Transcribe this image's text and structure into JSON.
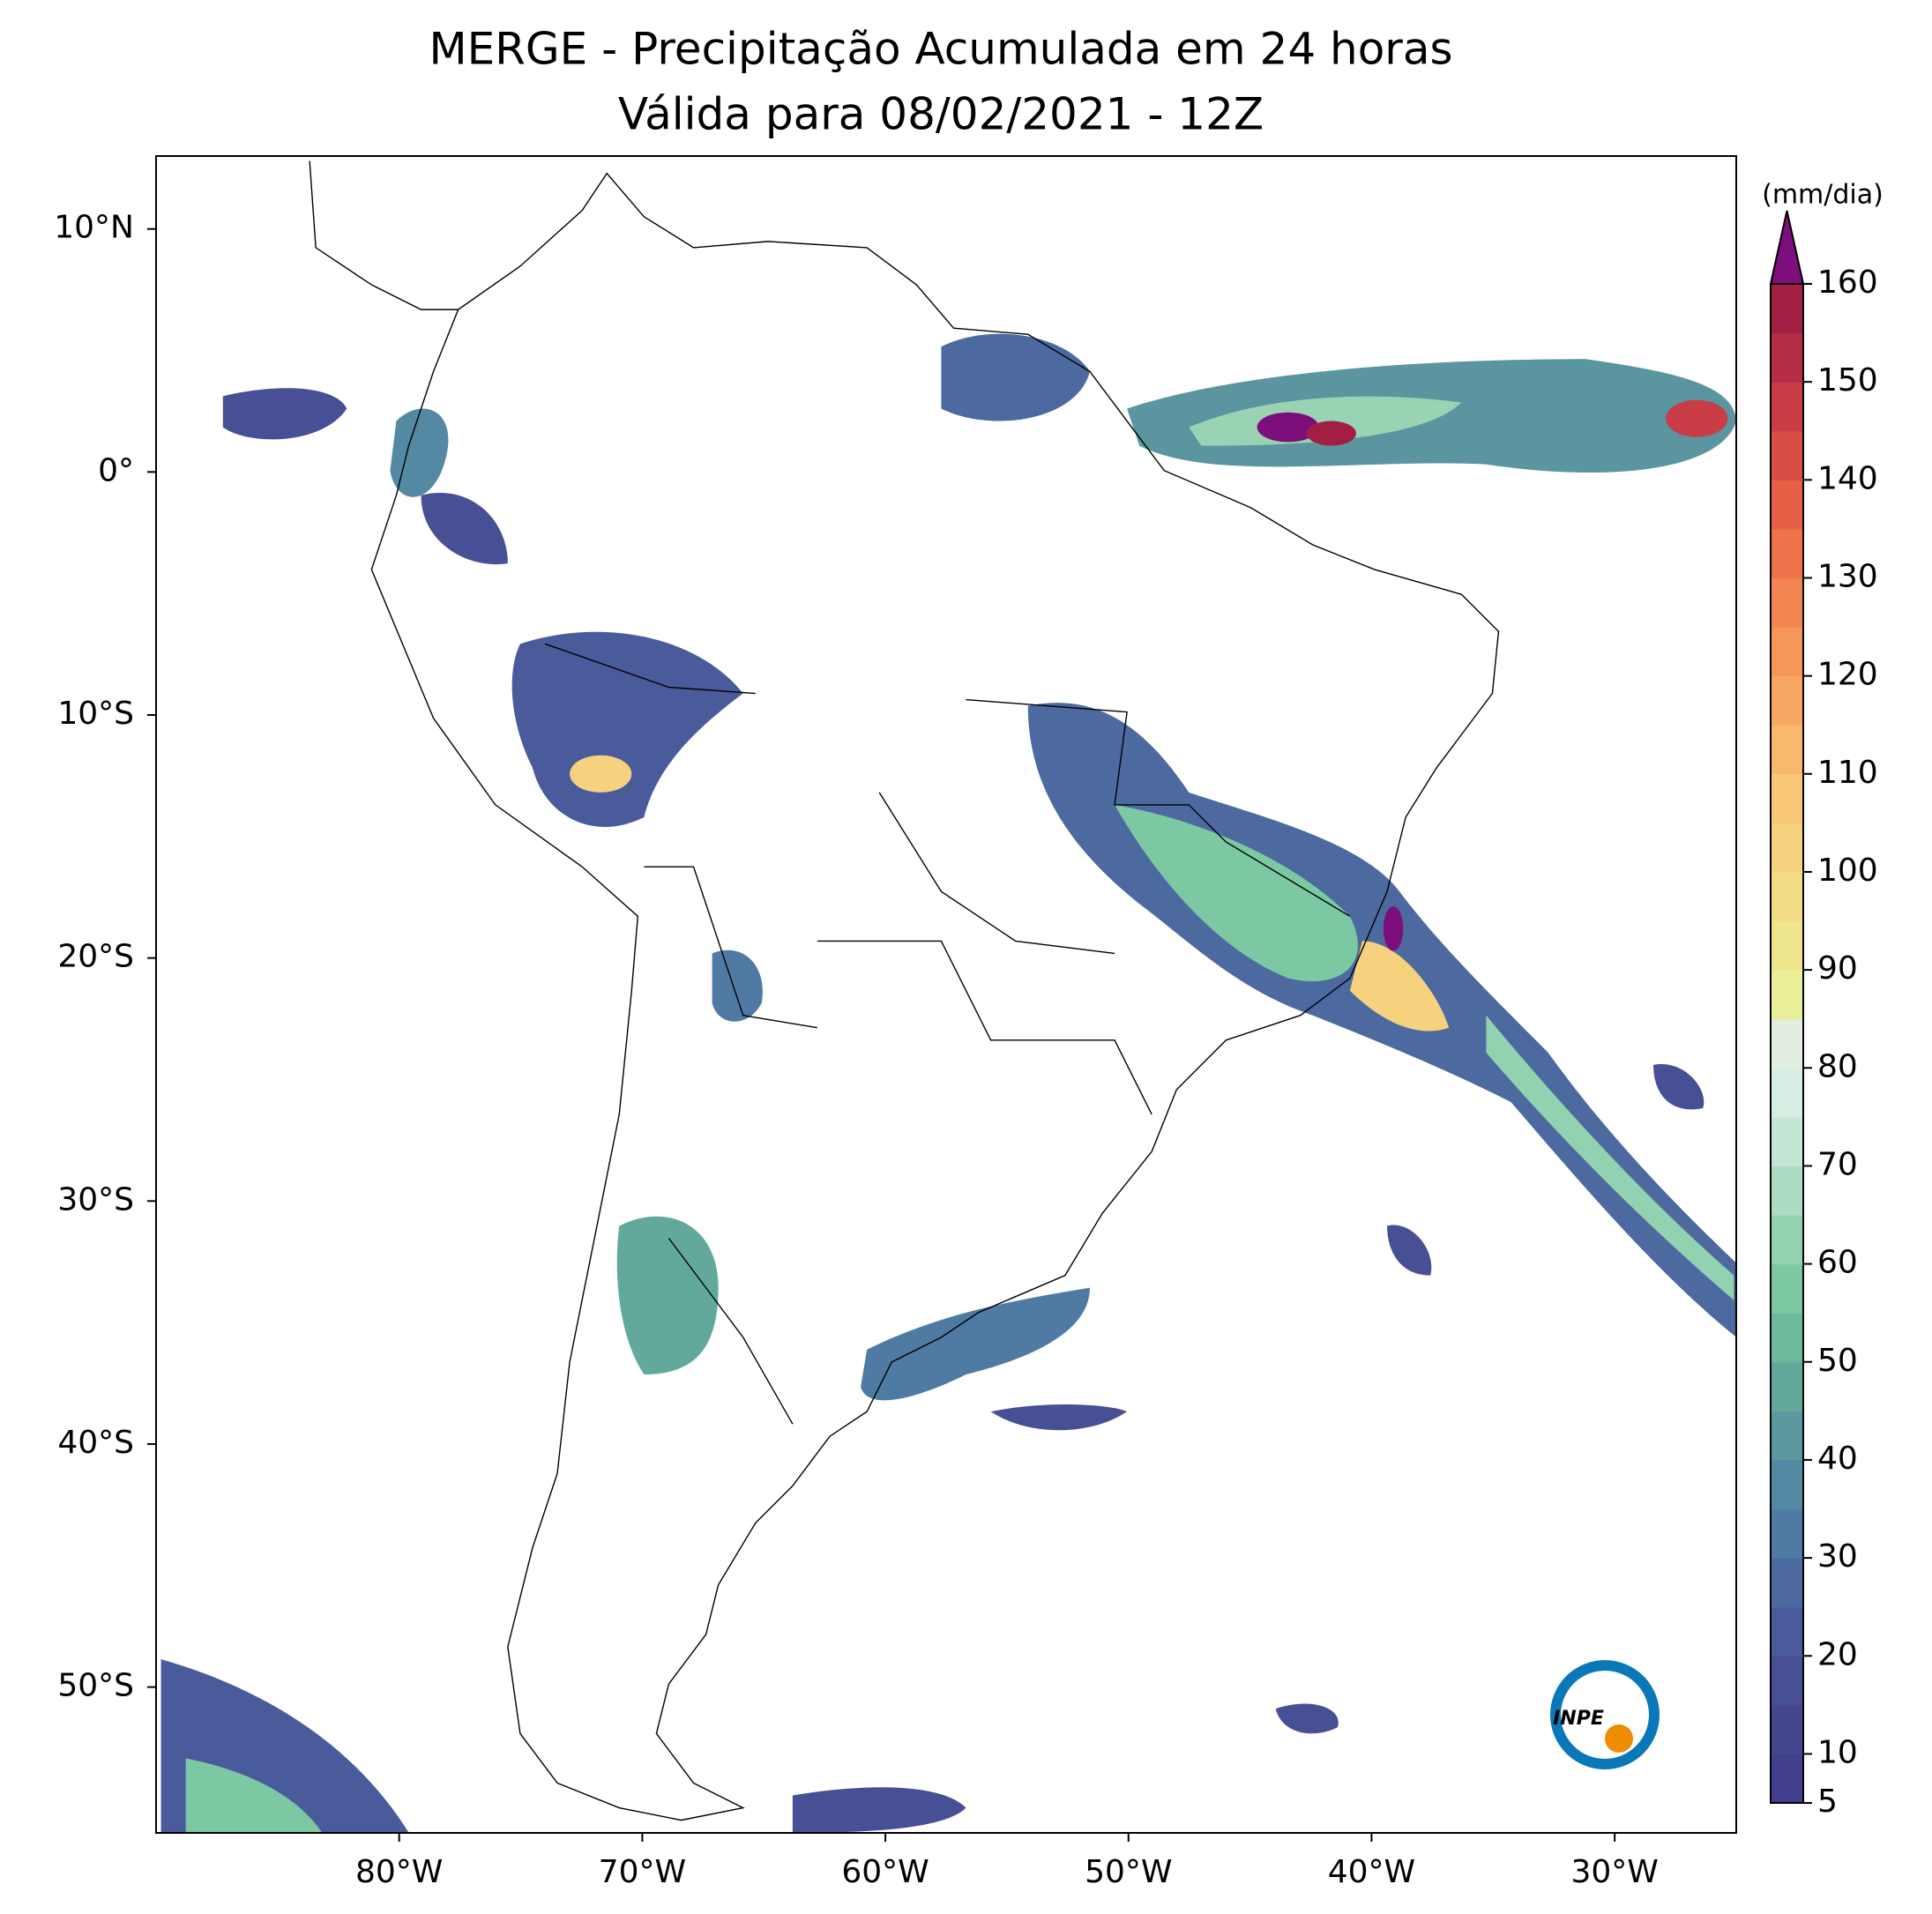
{
  "chart_data": {
    "type": "map",
    "title": "MERGE - Precipitação Acumulada em 24 horas",
    "subtitle": "Válida para 08/02/2021 - 12Z",
    "xlim": [
      -90,
      -25
    ],
    "ylim": [
      -56,
      13
    ],
    "xticks": [
      {
        "value": -80,
        "label": "80°W"
      },
      {
        "value": -70,
        "label": "70°W"
      },
      {
        "value": -60,
        "label": "60°W"
      },
      {
        "value": -50,
        "label": "50°W"
      },
      {
        "value": -40,
        "label": "40°W"
      },
      {
        "value": -30,
        "label": "30°W"
      }
    ],
    "yticks": [
      {
        "value": 10,
        "label": "10°N"
      },
      {
        "value": 0,
        "label": "0°"
      },
      {
        "value": -10,
        "label": "10°S"
      },
      {
        "value": -20,
        "label": "20°S"
      },
      {
        "value": -30,
        "label": "30°S"
      },
      {
        "value": -40,
        "label": "40°S"
      },
      {
        "value": -50,
        "label": "50°S"
      }
    ],
    "colorbar": {
      "label": "(mm/dia)",
      "lim": [
        5,
        160
      ],
      "ticks": [
        5,
        10,
        20,
        30,
        40,
        50,
        60,
        70,
        80,
        90,
        100,
        110,
        120,
        130,
        140,
        150,
        160
      ],
      "colors": [
        "#423f8c",
        "#46468f",
        "#474f95",
        "#4a5b9b",
        "#4c6aa0",
        "#4f7aa3",
        "#5389a2",
        "#59999f",
        "#62a99c",
        "#6cba9c",
        "#7cc8a2",
        "#93d2b0",
        "#acdcc2",
        "#c4e6d4",
        "#d6ede4",
        "#e2eee0",
        "#e9ef98",
        "#eee58d",
        "#f2dc86",
        "#f6d27e",
        "#f9c876",
        "#f9b96b",
        "#f8a862",
        "#f6975a",
        "#f38552",
        "#ef734a",
        "#e66045",
        "#d94e44",
        "#c83d45",
        "#b52d45",
        "#a21f43"
      ],
      "extend_color": "#7d0f7d"
    },
    "logo": "INPE"
  }
}
